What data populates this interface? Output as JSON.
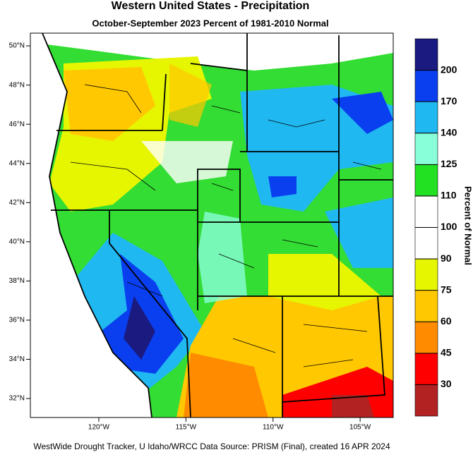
{
  "header": {
    "title": "Western United States - Precipitation",
    "subtitle": "October-September 2023  Percent of 1981-2010 Normal"
  },
  "map": {
    "ylim": [
      31.03,
      50.65
    ],
    "xlim": [
      -123.93,
      -103.1
    ],
    "yticks": [
      {
        "value": 50,
        "label": "50°N"
      },
      {
        "value": 48,
        "label": "48°N"
      },
      {
        "value": 46,
        "label": "46°N"
      },
      {
        "value": 44,
        "label": "44°N"
      },
      {
        "value": 42,
        "label": "42°N"
      },
      {
        "value": 40,
        "label": "40°N"
      },
      {
        "value": 38,
        "label": "38°N"
      },
      {
        "value": 36,
        "label": "36°N"
      },
      {
        "value": 34,
        "label": "34°N"
      },
      {
        "value": 32,
        "label": "32°N"
      }
    ],
    "xticks": [
      {
        "value": -120,
        "label": "120°W"
      },
      {
        "value": -115,
        "label": "115°W"
      },
      {
        "value": -110,
        "label": "110°W"
      },
      {
        "value": -105,
        "label": "105°W"
      }
    ]
  },
  "colorbar": {
    "label": "Percent of Normal",
    "ticks": [
      30,
      45,
      60,
      75,
      90,
      100,
      110,
      125,
      140,
      170,
      200
    ],
    "colors": [
      "#b22222",
      "#ff0000",
      "#ff8c00",
      "#ffc800",
      "#e6f500",
      "#ffffff",
      "#ffffff",
      "#22e022",
      "#88ffd8",
      "#20b8f0",
      "#0a3ff0",
      "#1a1a80"
    ]
  },
  "footer": "WestWide Drought Tracker, U Idaho/WRCC Data Source: PRISM (Final), created 16 APR 2024"
}
